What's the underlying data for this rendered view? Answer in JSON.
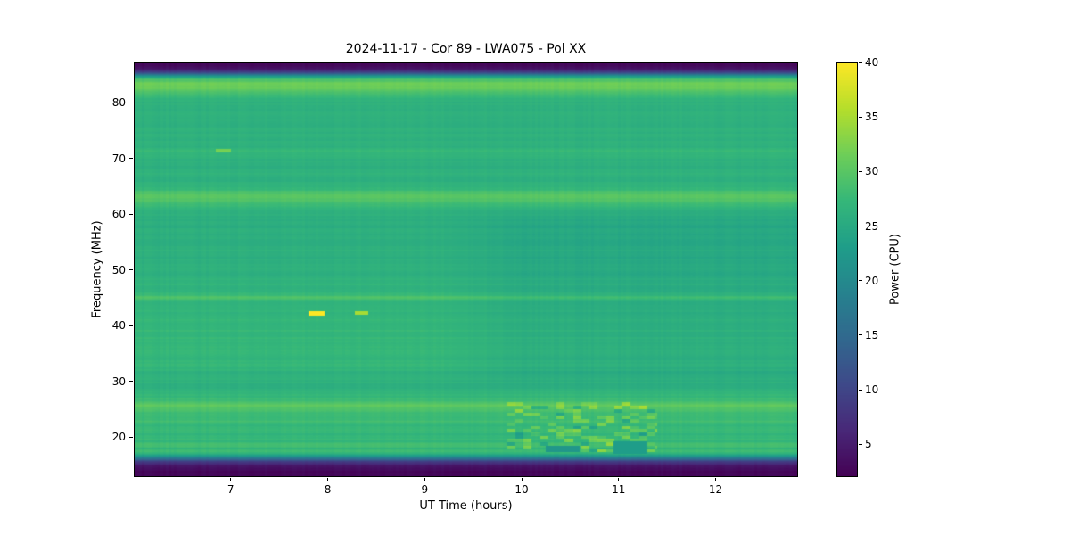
{
  "chart_data": {
    "type": "heatmap",
    "title": "2024-11-17 - Cor 89 - LWA075 - Pol XX",
    "xlabel": "UT Time (hours)",
    "ylabel": "Frequency (MHz)",
    "x_range": [
      6.0,
      12.85
    ],
    "y_range": [
      12.8,
      87.2
    ],
    "x_ticks": [
      7,
      8,
      9,
      10,
      11,
      12
    ],
    "y_ticks": [
      20,
      30,
      40,
      50,
      60,
      70,
      80
    ],
    "colorbar": {
      "label": "Power (CPU)",
      "range": [
        2,
        40
      ],
      "ticks": [
        5,
        10,
        15,
        20,
        25,
        30,
        35,
        40
      ],
      "colormap": "viridis"
    },
    "colormap_stops": [
      "#440154",
      "#482878",
      "#3e4989",
      "#31688e",
      "#26828e",
      "#1f9e89",
      "#35b779",
      "#6ece58",
      "#b5de2b",
      "#fde725"
    ],
    "freq_profile": [
      [
        12.8,
        2.4
      ],
      [
        13.8,
        2.8
      ],
      [
        14.8,
        4.5
      ],
      [
        15.5,
        8
      ],
      [
        16.0,
        15
      ],
      [
        16.5,
        22
      ],
      [
        17.0,
        26.5
      ],
      [
        17.4,
        28.6
      ],
      [
        18.0,
        27.2
      ],
      [
        18.6,
        28.8
      ],
      [
        19.2,
        26.9
      ],
      [
        19.8,
        27.6
      ],
      [
        20.5,
        26.6
      ],
      [
        21.2,
        28.1
      ],
      [
        22.0,
        27.0
      ],
      [
        22.8,
        28.5
      ],
      [
        23.5,
        27.3
      ],
      [
        24.2,
        28.0
      ],
      [
        25.0,
        29.6
      ],
      [
        25.7,
        30.2
      ],
      [
        26.4,
        28.3
      ],
      [
        27.2,
        27.5
      ],
      [
        28.2,
        26.6
      ],
      [
        29.2,
        26.0
      ],
      [
        30.2,
        26.5
      ],
      [
        31.2,
        25.9
      ],
      [
        32.2,
        27.0
      ],
      [
        33.2,
        27.5
      ],
      [
        34.2,
        26.7
      ],
      [
        35.2,
        27.8
      ],
      [
        36.2,
        26.9
      ],
      [
        37.2,
        27.6
      ],
      [
        38.2,
        26.8
      ],
      [
        39.2,
        27.4
      ],
      [
        40.2,
        26.7
      ],
      [
        41.2,
        27.2
      ],
      [
        42.2,
        26.8
      ],
      [
        43.2,
        27.0
      ],
      [
        44.2,
        26.6
      ],
      [
        44.9,
        29.4
      ],
      [
        45.5,
        27.8
      ],
      [
        46.2,
        26.3
      ],
      [
        47.5,
        26.8
      ],
      [
        49.0,
        26.1
      ],
      [
        50.5,
        26.5
      ],
      [
        52.0,
        25.8
      ],
      [
        53.5,
        26.3
      ],
      [
        55.0,
        25.7
      ],
      [
        56.5,
        26.1
      ],
      [
        58.0,
        25.6
      ],
      [
        59.5,
        26.0
      ],
      [
        61.0,
        26.6
      ],
      [
        62.0,
        28.6
      ],
      [
        63.0,
        30.1
      ],
      [
        63.8,
        29.2
      ],
      [
        64.6,
        26.8
      ],
      [
        66.0,
        26.1
      ],
      [
        67.5,
        26.5
      ],
      [
        69.0,
        25.9
      ],
      [
        70.3,
        26.5
      ],
      [
        71.3,
        27.7
      ],
      [
        72.2,
        26.2
      ],
      [
        73.5,
        26.1
      ],
      [
        75.0,
        26.4
      ],
      [
        76.5,
        25.9
      ],
      [
        78.0,
        26.3
      ],
      [
        79.5,
        26.1
      ],
      [
        80.8,
        27.0
      ],
      [
        81.8,
        29.0
      ],
      [
        82.6,
        31.0
      ],
      [
        83.4,
        31.4
      ],
      [
        84.1,
        29.0
      ],
      [
        84.7,
        23.0
      ],
      [
        85.2,
        13.0
      ],
      [
        85.8,
        5.5
      ],
      [
        86.4,
        3.0
      ],
      [
        87.2,
        2.4
      ]
    ],
    "time_dip": {
      "t_start": 9.3,
      "ramp": 0.7,
      "f0": 28,
      "f1": 62,
      "amount": 1.2
    },
    "speckle_region": {
      "t0": 9.85,
      "t1": 11.4,
      "f0": 17.2,
      "f1": 26.2,
      "cell_t": 0.085,
      "cell_f": 0.6,
      "density": 0.3,
      "boost_max": 5.5,
      "dark_density": 0.06,
      "dark_amount": 3.5
    },
    "features": [
      {
        "t0": 7.8,
        "t1": 7.97,
        "f0": 41.8,
        "f1": 42.55,
        "value": 40
      },
      {
        "t0": 8.28,
        "t1": 8.42,
        "f0": 42.0,
        "f1": 42.55,
        "value": 35
      },
      {
        "t0": 6.85,
        "t1": 7.0,
        "f0": 71.1,
        "f1": 71.6,
        "value": 32
      },
      {
        "t0": 10.25,
        "t1": 10.6,
        "f0": 17.2,
        "f1": 18.4,
        "value": 22
      },
      {
        "t0": 10.95,
        "t1": 11.3,
        "f0": 17.0,
        "f1": 19.2,
        "value": 23
      }
    ],
    "noise": {
      "row_amp": 0.45,
      "col_amp": 0.3,
      "seed": 7
    }
  }
}
